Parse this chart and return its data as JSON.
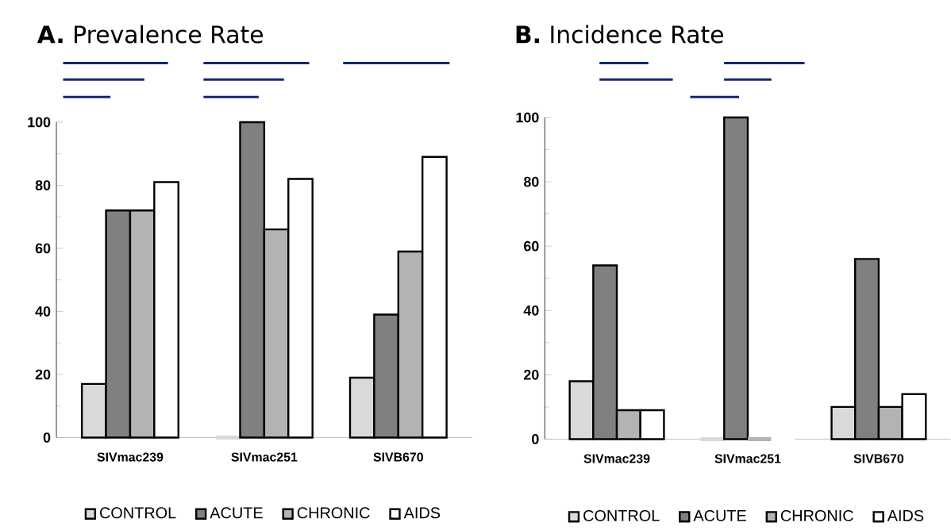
{
  "chart_data": [
    {
      "type": "bar",
      "title": "**A.** Prevalence Rate",
      "categories": [
        "SIVmac239",
        "SIVmac251",
        "SIVB670"
      ],
      "series": [
        {
          "name": "CONTROL",
          "color": "#d9d9d9",
          "values": [
            17,
            0,
            19
          ]
        },
        {
          "name": "ACUTE",
          "color": "#808080",
          "values": [
            72,
            100,
            39
          ]
        },
        {
          "name": "CHRONIC",
          "color": "#b3b3b3",
          "values": [
            72,
            66,
            59
          ]
        },
        {
          "name": "AIDS",
          "color": "#ffffff",
          "values": [
            81,
            82,
            89
          ]
        }
      ],
      "ylim": [
        0,
        100
      ],
      "yticks": [
        0,
        20,
        40,
        60,
        80,
        100
      ],
      "legend": "bottom"
    },
    {
      "type": "bar",
      "title": "**B.** Incidence Rate",
      "categories": [
        "SIVmac239",
        "SIVmac251",
        "SIVB670"
      ],
      "series": [
        {
          "name": "CONTROL",
          "color": "#d9d9d9",
          "values": [
            18,
            0,
            10
          ]
        },
        {
          "name": "ACUTE",
          "color": "#808080",
          "values": [
            54,
            100,
            56
          ]
        },
        {
          "name": "CHRONIC",
          "color": "#b3b3b3",
          "values": [
            9,
            0,
            10
          ]
        },
        {
          "name": "AIDS",
          "color": "#ffffff",
          "values": [
            9,
            0,
            14
          ]
        }
      ],
      "ylim": [
        0,
        100
      ],
      "yticks": [
        0,
        20,
        40,
        60,
        80,
        100
      ],
      "legend": "bottom"
    }
  ]
}
